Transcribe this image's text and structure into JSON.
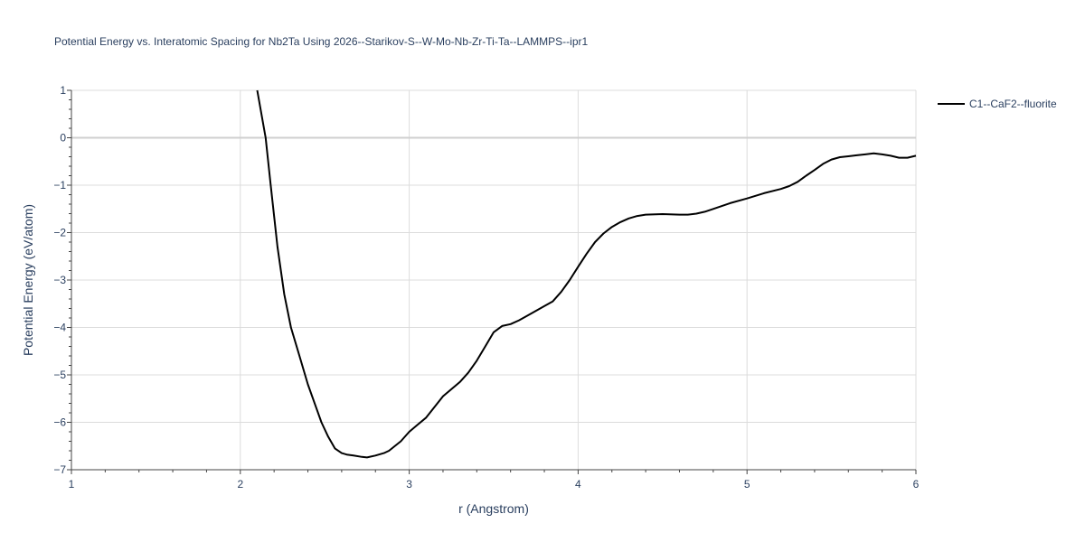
{
  "chart_data": {
    "type": "line",
    "title": "Potential Energy vs. Interatomic Spacing for Nb2Ta Using 2026--Starikov-S--W-Mo-Nb-Zr-Ti-Ta--LAMMPS--ipr1",
    "xlabel": "r (Angstrom)",
    "ylabel": "Potential Energy (eV/atom)",
    "xlim": [
      1,
      6
    ],
    "ylim": [
      -7,
      1
    ],
    "xticks": [
      1,
      2,
      3,
      4,
      5,
      6
    ],
    "xtick_labels": [
      "1",
      "2",
      "3",
      "4",
      "5",
      "6"
    ],
    "yticks": [
      1,
      0,
      -1,
      -2,
      -3,
      -4,
      -5,
      -6,
      -7
    ],
    "ytick_labels": [
      "1",
      "0",
      "−1",
      "−2",
      "−3",
      "−4",
      "−5",
      "−6",
      "−7"
    ],
    "grid": true,
    "legend_position": "top-right",
    "series": [
      {
        "name": "C1--CaF2--fluorite",
        "color": "#000000",
        "x": [
          2.1,
          2.15,
          2.18,
          2.22,
          2.26,
          2.3,
          2.35,
          2.4,
          2.45,
          2.48,
          2.52,
          2.56,
          2.6,
          2.63,
          2.67,
          2.72,
          2.75,
          2.8,
          2.85,
          2.88,
          2.95,
          3.0,
          3.05,
          3.1,
          3.2,
          3.3,
          3.35,
          3.4,
          3.45,
          3.5,
          3.55,
          3.6,
          3.65,
          3.7,
          3.8,
          3.85,
          3.9,
          3.95,
          4.0,
          4.05,
          4.1,
          4.15,
          4.2,
          4.25,
          4.3,
          4.35,
          4.4,
          4.5,
          4.6,
          4.65,
          4.7,
          4.75,
          4.8,
          4.9,
          5.0,
          5.1,
          5.2,
          5.25,
          5.3,
          5.35,
          5.4,
          5.45,
          5.5,
          5.55,
          5.6,
          5.65,
          5.7,
          5.75,
          5.8,
          5.85,
          5.9,
          5.95,
          6.0
        ],
        "y": [
          1.0,
          0.0,
          -1.0,
          -2.3,
          -3.3,
          -4.0,
          -4.6,
          -5.2,
          -5.7,
          -6.0,
          -6.3,
          -6.55,
          -6.65,
          -6.68,
          -6.7,
          -6.73,
          -6.74,
          -6.7,
          -6.65,
          -6.6,
          -6.4,
          -6.2,
          -6.05,
          -5.9,
          -5.45,
          -5.15,
          -4.95,
          -4.7,
          -4.4,
          -4.1,
          -3.97,
          -3.93,
          -3.85,
          -3.75,
          -3.55,
          -3.45,
          -3.25,
          -3.0,
          -2.72,
          -2.45,
          -2.2,
          -2.02,
          -1.88,
          -1.78,
          -1.7,
          -1.65,
          -1.62,
          -1.61,
          -1.62,
          -1.62,
          -1.6,
          -1.56,
          -1.5,
          -1.38,
          -1.28,
          -1.17,
          -1.08,
          -1.02,
          -0.93,
          -0.8,
          -0.68,
          -0.55,
          -0.46,
          -0.41,
          -0.39,
          -0.37,
          -0.35,
          -0.33,
          -0.35,
          -0.38,
          -0.42,
          -0.42,
          -0.38
        ]
      }
    ]
  }
}
